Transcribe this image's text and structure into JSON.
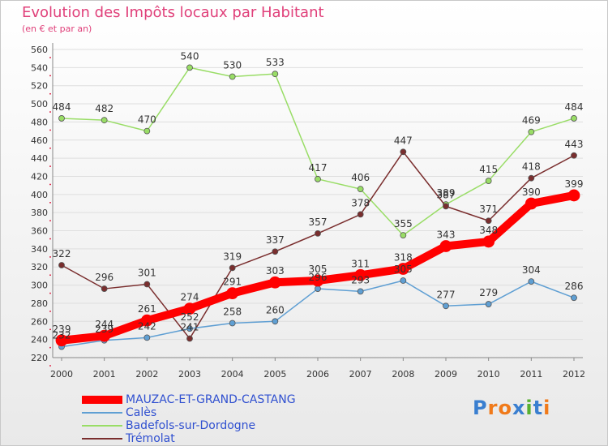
{
  "title": "Evolution des Impôts locaux par Habitant",
  "subtitle": "(en € et par an)",
  "chart_data": {
    "type": "line",
    "x": [
      "2000",
      "2001",
      "2002",
      "2003",
      "2004",
      "2005",
      "2006",
      "2007",
      "2008",
      "2009",
      "2010",
      "2011",
      "2012"
    ],
    "ylim": [
      220,
      560
    ],
    "yticks": [
      220,
      240,
      260,
      280,
      300,
      320,
      340,
      360,
      380,
      400,
      420,
      440,
      460,
      480,
      500,
      520,
      540,
      560
    ],
    "grid": "horizontal",
    "legend_position": "bottom-left",
    "series": [
      {
        "name": "MAUZAC-ET-GRAND-CASTANG",
        "color": "#ff0000",
        "width": 10,
        "values": [
          239,
          244,
          261,
          274,
          291,
          303,
          305,
          311,
          318,
          343,
          348,
          390,
          399
        ]
      },
      {
        "name": "Calès",
        "color": "#5f9fd3",
        "width": 1.5,
        "values": [
          232,
          239,
          242,
          252,
          258,
          260,
          296,
          293,
          305,
          277,
          279,
          304,
          286
        ]
      },
      {
        "name": "Badefols-sur-Dordogne",
        "color": "#99dd66",
        "width": 1.5,
        "values": [
          484,
          482,
          470,
          540,
          530,
          533,
          417,
          406,
          355,
          389,
          415,
          469,
          484
        ]
      },
      {
        "name": "Trémolat",
        "color": "#7a2e2e",
        "width": 1.5,
        "values": [
          322,
          296,
          301,
          241,
          319,
          337,
          357,
          378,
          447,
          387,
          371,
          418,
          443
        ]
      }
    ]
  },
  "logo": {
    "text": "Proxiti",
    "colors": [
      "#3a7fd0",
      "#f07a1a",
      "#f07a1a",
      "#3a7fd0",
      "#58b030",
      "#3a7fd0",
      "#f07a1a"
    ]
  }
}
